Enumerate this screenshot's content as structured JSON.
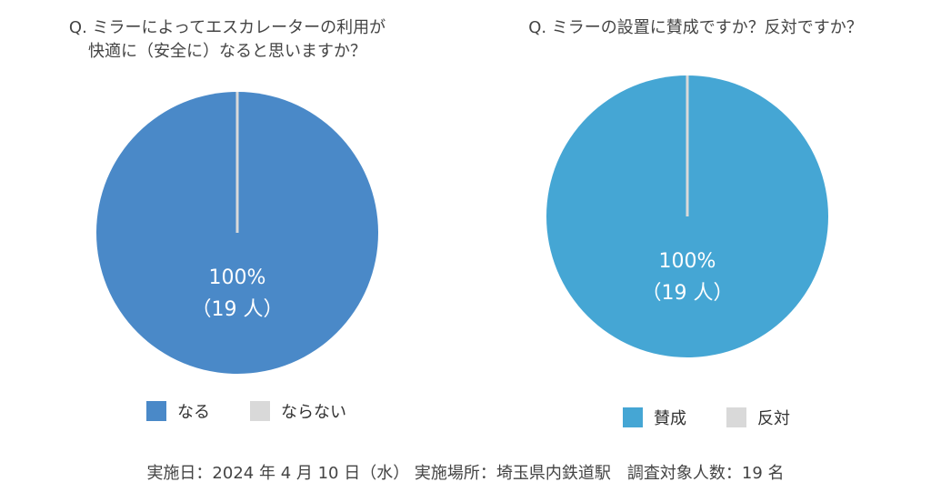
{
  "footer": "実施日：2024 年 4 月 10 日（水） 実施場所：埼玉県内鉄道駅　調査対象人数：19 名",
  "chart_data": [
    {
      "type": "pie",
      "title_lines": [
        "Q. ミラーによってエスカレーターの利用が",
        "快適に（安全に）なると思いますか？"
      ],
      "categories": [
        "なる",
        "ならない"
      ],
      "values": [
        19,
        0
      ],
      "percent_label": "100%",
      "count_label": "（19 人）",
      "colors": [
        "#4a89c8",
        "#d9d9d9"
      ],
      "legend_position": "bottom"
    },
    {
      "type": "pie",
      "title_lines": [
        "Q. ミラーの設置に賛成ですか？反対ですか？"
      ],
      "categories": [
        "賛成",
        "反対"
      ],
      "values": [
        19,
        0
      ],
      "percent_label": "100%",
      "count_label": "（19 人）",
      "colors": [
        "#45a6d4",
        "#d9d9d9"
      ],
      "legend_position": "bottom"
    }
  ]
}
